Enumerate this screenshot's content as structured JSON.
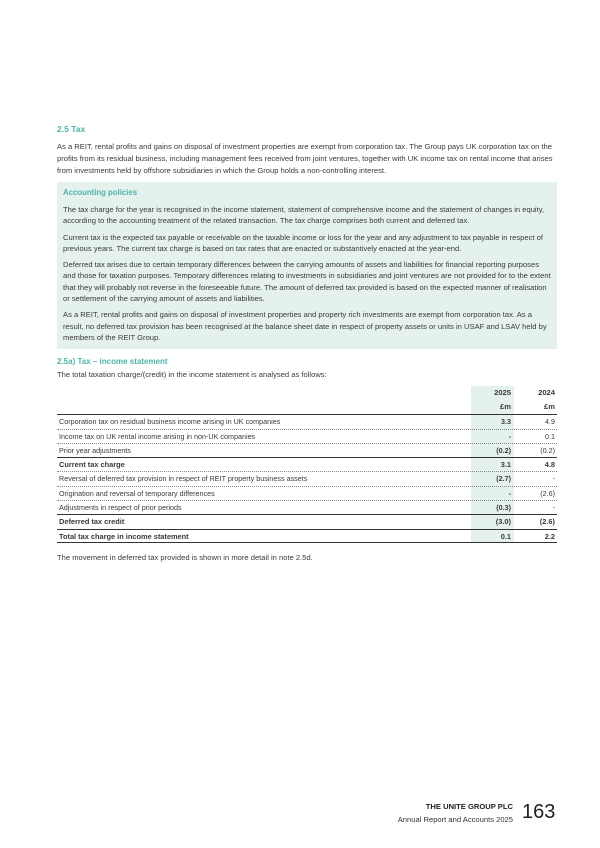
{
  "section_title": "2.5 Tax",
  "intro": "As a REIT, rental profits and gains on disposal of investment properties are exempt from corporation tax. The Group pays UK corporation tax on the profits from its residual business, including management fees received from joint ventures, together with UK income tax on rental income that arises from investments held by offshore subsidiaries in which the Group holds a non-controlling interest.",
  "policies": {
    "title": "Accounting policies",
    "paragraphs": [
      "The tax charge for the year is recognised in the income statement, statement of comprehensive income and the statement of changes in equity, according to the accounting treatment of the related transaction. The tax charge comprises both current and deferred tax.",
      "Current tax is the expected tax payable or receivable on the taxable income or loss for the year and any adjustment to tax payable in respect of previous years. The current tax charge is based on tax rates that are enacted or substantively enacted at the year-end.",
      "Deferred tax arises due to certain temporary differences between the carrying amounts of assets and liabilities for financial reporting purposes and those for taxation purposes. Temporary differences relating to investments in subsidiaries and joint ventures are not provided for to the extent that they will probably not reverse in the foreseeable future. The amount of deferred tax provided is based on the expected manner of realisation or settlement of the carrying amount of assets and liabilities.",
      "As a REIT, rental profits and gains on disposal of investment properties and property rich investments are exempt from corporation tax. As a result, no deferred tax provision has been recognised at the balance sheet date in respect of property assets or units in USAF and LSAV held by members of the REIT Group."
    ]
  },
  "subsection_title": "2.5a) Tax – income statement",
  "table_intro": "The total taxation charge/(credit) in the income statement is analysed as follows:",
  "table": {
    "years": [
      "2025",
      "2024"
    ],
    "unit": "£m",
    "rows": [
      {
        "label": "Corporation tax on residual business income arising in UK companies",
        "v2025": "3.3",
        "v2024": "4.9"
      },
      {
        "label": "Income tax on UK rental income arising in non-UK companies",
        "v2025": "-",
        "v2024": "0.1"
      },
      {
        "label": "Prior year adjustments",
        "v2025": "(0.2)",
        "v2024": "(0.2)"
      },
      {
        "label": "Current tax charge",
        "v2025": "3.1",
        "v2024": "4.8"
      },
      {
        "label": "Reversal of deferred tax provision in respect of REIT property business assets",
        "v2025": "(2.7)",
        "v2024": "-"
      },
      {
        "label": "Origination and reversal of temporary differences",
        "v2025": "-",
        "v2024": "(2.6)"
      },
      {
        "label": "Adjustments in respect of prior periods",
        "v2025": "(0.3)",
        "v2024": "-"
      },
      {
        "label": "Deferred tax credit",
        "v2025": "(3.0)",
        "v2024": "(2.6)"
      },
      {
        "label": "Total tax charge in income statement",
        "v2025": "0.1",
        "v2024": "2.2"
      }
    ]
  },
  "note": "The movement in deferred tax provided is shown in more detail in note 2.5d.",
  "footer": {
    "company": "THE UNITE GROUP PLC",
    "report": "Annual Report and Accounts 2025",
    "page": "163"
  },
  "colors": {
    "accent": "#4fb3a9",
    "highlight": "#e5f1ed"
  }
}
